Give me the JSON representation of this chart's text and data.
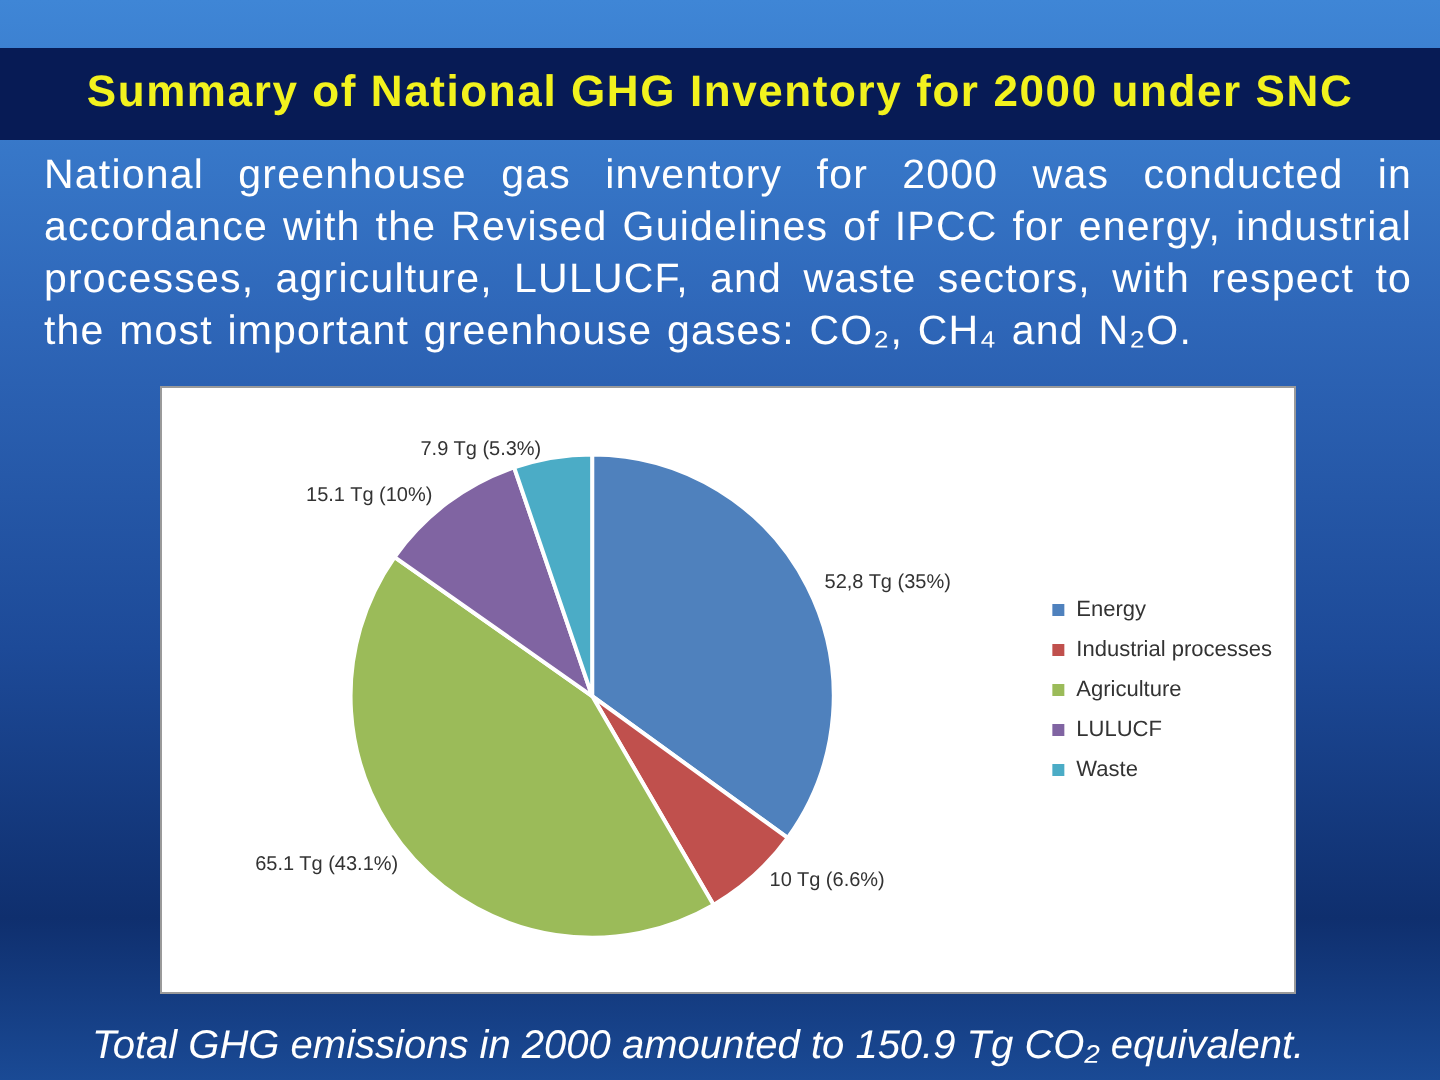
{
  "chart_data": {
    "type": "pie",
    "title": "Summary of National GHG Inventory for 2000 under SNC",
    "subtitle": "National greenhouse gas inventory for 2000 was conducted in accordance with the Revised Guidelines of IPCC for energy, industrial processes, agriculture, LULUCF, and waste sectors, with respect to the most important greenhouse gases: CO₂, CH₄ and N₂O.",
    "categories": [
      "Energy",
      "Industrial processes",
      "Agriculture",
      "LULUCF",
      "Waste"
    ],
    "values": [
      52.8,
      10,
      65.1,
      15.1,
      7.9
    ],
    "colors": [
      "#4f81bd",
      "#c0504d",
      "#9bbb59",
      "#8064a2",
      "#4bacc6"
    ],
    "value_labels": [
      "52,8 Tg (35%)",
      "10 Tg (6.6%)",
      "65.1 Tg (43.1%)",
      "15.1 Tg (10%)",
      "7.9 Tg (5.3%)"
    ],
    "legend": "right",
    "annotations": [
      "Total GHG emissions in 2000 amounted to 150.9 Tg CO₂ equivalent."
    ]
  }
}
